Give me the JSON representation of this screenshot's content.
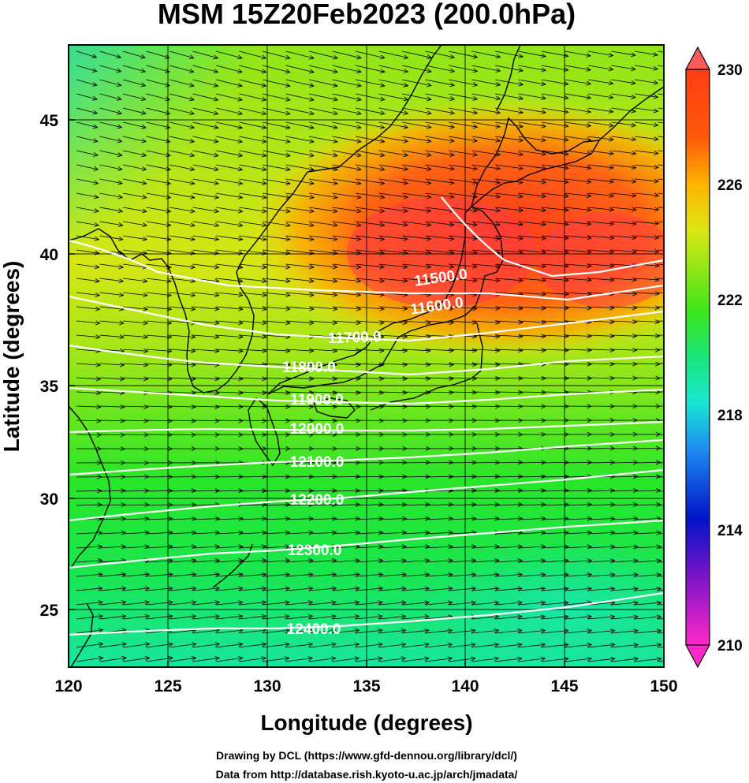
{
  "title": "MSM 15Z20Feb2023 (200.0hPa)",
  "xlabel": "Longitude (degrees)",
  "ylabel": "Latitude  (degrees)",
  "x_ticks": [
    "120",
    "125",
    "130",
    "135",
    "140",
    "145",
    "150"
  ],
  "y_ticks": [
    "45",
    "40",
    "35",
    "30",
    "25"
  ],
  "colorbar": {
    "labels": [
      "230",
      "226",
      "222",
      "218",
      "214",
      "210"
    ],
    "range": [
      210,
      230
    ]
  },
  "credits": {
    "line1": "Drawing by DCL (https://www.gfd-dennou.org/library/dcl/)",
    "line2": "Data from http://database.rish.kyoto-u.ac.jp/arch/jmadata/"
  },
  "chart_data": {
    "type": "heatmap",
    "xlim": [
      120,
      150
    ],
    "ylim": [
      22.5,
      47.6
    ],
    "colormap": [
      "#ff33cc",
      "#7a00cc",
      "#0000cc",
      "#1e78e6",
      "#14dcdc",
      "#19e68c",
      "#19e619",
      "#8ee619",
      "#f0e614",
      "#ffaa00",
      "#ff3c14"
    ],
    "contours": [
      {
        "label": "11500.0",
        "value": 11500
      },
      {
        "label": "11600.0",
        "value": 11600
      },
      {
        "label": "11700.0",
        "value": 11700
      },
      {
        "label": "11800.0",
        "value": 11800
      },
      {
        "label": "11900.0",
        "value": 11900
      },
      {
        "label": "12000.0",
        "value": 12000
      },
      {
        "label": "12100.0",
        "value": 12100
      },
      {
        "label": "12200.0",
        "value": 12200
      },
      {
        "label": "12300.0",
        "value": 12300
      },
      {
        "label": "12400.0",
        "value": 12400
      }
    ]
  }
}
